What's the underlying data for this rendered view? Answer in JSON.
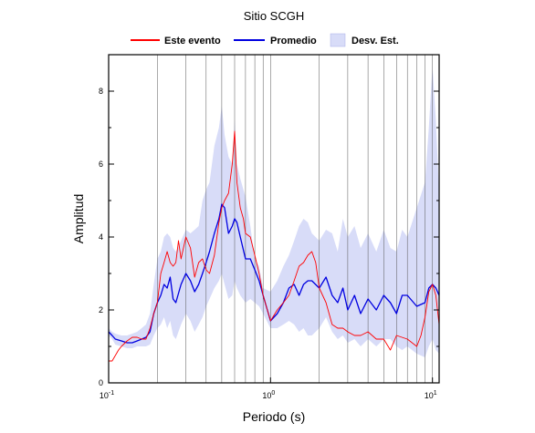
{
  "chart_data": {
    "type": "line",
    "title": "Sitio SCGH",
    "xlabel": "Periodo (s)",
    "ylabel": "Amplitud",
    "xscale": "log",
    "xlim": [
      0.1,
      11
    ],
    "ylim": [
      0,
      9
    ],
    "x_ticks": [
      {
        "base": "10",
        "exp": "-1",
        "value": 0.1
      },
      {
        "base": "10",
        "exp": "0",
        "value": 1
      },
      {
        "base": "10",
        "exp": "1",
        "value": 10
      }
    ],
    "y_ticks": [
      "0",
      "2",
      "4",
      "6",
      "8"
    ],
    "y_tick_values": [
      0,
      2,
      4,
      6,
      8
    ],
    "grid": "vertical log grid",
    "legend_placement": "top",
    "legend": [
      "Este evento",
      "Promedio",
      "Desv. Est."
    ],
    "colors": {
      "este_evento": "#ff0000",
      "promedio": "#0000e0",
      "desv_est": "#d8dcf8",
      "axis": "#000000",
      "grid": "#555555"
    },
    "series": [
      {
        "name": "Este evento",
        "x": [
          0.1,
          0.105,
          0.11,
          0.115,
          0.12,
          0.13,
          0.14,
          0.15,
          0.16,
          0.17,
          0.18,
          0.19,
          0.2,
          0.21,
          0.22,
          0.23,
          0.24,
          0.25,
          0.26,
          0.27,
          0.28,
          0.3,
          0.32,
          0.34,
          0.36,
          0.38,
          0.4,
          0.42,
          0.45,
          0.48,
          0.5,
          0.52,
          0.55,
          0.58,
          0.6,
          0.62,
          0.65,
          0.68,
          0.7,
          0.75,
          0.8,
          0.85,
          0.9,
          1.0,
          1.1,
          1.2,
          1.3,
          1.4,
          1.5,
          1.6,
          1.7,
          1.8,
          1.9,
          2.0,
          2.2,
          2.4,
          2.6,
          2.8,
          3.0,
          3.3,
          3.6,
          4.0,
          4.5,
          5.0,
          5.5,
          6.0,
          7.0,
          8.0,
          8.5,
          9.0,
          9.5,
          10.0,
          10.5,
          11.0
        ],
        "y": [
          0.6,
          0.6,
          0.75,
          0.9,
          1.0,
          1.15,
          1.25,
          1.25,
          1.2,
          1.2,
          1.5,
          1.9,
          2.2,
          3.0,
          3.3,
          3.6,
          3.3,
          3.2,
          3.3,
          3.9,
          3.4,
          4.0,
          3.7,
          2.9,
          3.3,
          3.4,
          3.1,
          3.0,
          3.5,
          4.4,
          4.8,
          5.0,
          5.2,
          6.0,
          6.9,
          5.5,
          4.8,
          4.5,
          4.1,
          4.0,
          3.5,
          3.0,
          2.4,
          1.7,
          2.0,
          2.2,
          2.4,
          2.8,
          3.2,
          3.3,
          3.5,
          3.6,
          3.3,
          2.6,
          2.2,
          1.6,
          1.5,
          1.5,
          1.4,
          1.3,
          1.3,
          1.4,
          1.2,
          1.2,
          0.9,
          1.3,
          1.2,
          1.0,
          1.3,
          1.8,
          2.5,
          2.7,
          2.4,
          1.6
        ]
      },
      {
        "name": "Promedio",
        "x": [
          0.1,
          0.105,
          0.11,
          0.12,
          0.13,
          0.14,
          0.15,
          0.16,
          0.17,
          0.18,
          0.19,
          0.2,
          0.21,
          0.22,
          0.23,
          0.24,
          0.25,
          0.26,
          0.28,
          0.3,
          0.32,
          0.34,
          0.36,
          0.38,
          0.4,
          0.42,
          0.45,
          0.48,
          0.5,
          0.52,
          0.55,
          0.58,
          0.6,
          0.62,
          0.65,
          0.7,
          0.75,
          0.8,
          0.85,
          0.9,
          1.0,
          1.1,
          1.2,
          1.3,
          1.4,
          1.5,
          1.6,
          1.7,
          1.8,
          2.0,
          2.2,
          2.4,
          2.6,
          2.8,
          3.0,
          3.3,
          3.6,
          4.0,
          4.5,
          5.0,
          5.5,
          6.0,
          6.5,
          7.0,
          8.0,
          9.0,
          9.5,
          10.0,
          10.5,
          11.0
        ],
        "y": [
          1.4,
          1.3,
          1.2,
          1.15,
          1.1,
          1.1,
          1.15,
          1.2,
          1.25,
          1.4,
          1.9,
          2.2,
          2.4,
          2.7,
          2.6,
          2.9,
          2.3,
          2.2,
          2.7,
          3.0,
          2.8,
          2.5,
          2.7,
          3.0,
          3.3,
          3.6,
          4.1,
          4.5,
          4.9,
          4.8,
          4.1,
          4.3,
          4.5,
          4.4,
          4.0,
          3.4,
          3.4,
          3.1,
          2.8,
          2.4,
          1.7,
          1.9,
          2.2,
          2.6,
          2.7,
          2.4,
          2.7,
          2.8,
          2.8,
          2.6,
          2.9,
          2.4,
          2.2,
          2.6,
          2.0,
          2.4,
          1.9,
          2.3,
          2.0,
          2.4,
          2.2,
          1.9,
          2.4,
          2.4,
          2.1,
          2.2,
          2.6,
          2.7,
          2.6,
          2.4
        ]
      },
      {
        "name": "Desv. Est.",
        "x": [
          0.1,
          0.105,
          0.11,
          0.12,
          0.13,
          0.14,
          0.15,
          0.16,
          0.17,
          0.18,
          0.19,
          0.2,
          0.21,
          0.22,
          0.23,
          0.24,
          0.25,
          0.26,
          0.28,
          0.3,
          0.32,
          0.34,
          0.36,
          0.38,
          0.4,
          0.42,
          0.45,
          0.48,
          0.5,
          0.52,
          0.55,
          0.58,
          0.6,
          0.62,
          0.65,
          0.7,
          0.75,
          0.8,
          0.85,
          0.9,
          1.0,
          1.1,
          1.2,
          1.3,
          1.4,
          1.5,
          1.6,
          1.7,
          1.8,
          2.0,
          2.2,
          2.4,
          2.6,
          2.8,
          3.0,
          3.3,
          3.6,
          4.0,
          4.5,
          5.0,
          5.5,
          6.0,
          6.5,
          7.0,
          8.0,
          9.0,
          9.5,
          10.0,
          10.5,
          11.0
        ],
        "upper": [
          1.5,
          1.4,
          1.35,
          1.3,
          1.3,
          1.35,
          1.4,
          1.5,
          1.6,
          1.9,
          2.7,
          3.4,
          3.6,
          4.0,
          4.1,
          4.0,
          3.7,
          3.6,
          3.9,
          4.2,
          4.1,
          4.2,
          4.3,
          5.0,
          5.3,
          5.5,
          6.5,
          7.0,
          7.6,
          6.8,
          6.2,
          6.0,
          7.2,
          6.0,
          5.6,
          5.1,
          4.3,
          3.4,
          3.2,
          2.6,
          2.5,
          2.8,
          3.2,
          3.5,
          3.9,
          4.3,
          4.5,
          4.4,
          4.1,
          3.9,
          4.2,
          4.1,
          3.6,
          4.5,
          4.0,
          4.3,
          3.7,
          4.1,
          3.6,
          4.2,
          3.7,
          3.6,
          4.2,
          4.0,
          4.8,
          5.5,
          7.0,
          8.7,
          7.2,
          5.2
        ],
        "lower": [
          1.3,
          1.2,
          1.05,
          1.0,
          0.95,
          0.95,
          1.0,
          1.0,
          1.0,
          1.05,
          1.3,
          1.5,
          1.6,
          1.8,
          1.5,
          1.7,
          1.3,
          1.2,
          1.6,
          1.9,
          1.7,
          1.4,
          1.6,
          1.8,
          2.1,
          2.3,
          2.6,
          2.8,
          3.0,
          2.7,
          2.3,
          2.4,
          2.8,
          2.6,
          2.4,
          2.2,
          2.3,
          2.2,
          2.1,
          1.9,
          1.5,
          1.5,
          1.6,
          1.7,
          1.6,
          1.4,
          1.5,
          1.3,
          1.3,
          1.5,
          1.8,
          1.4,
          1.2,
          1.3,
          1.1,
          1.2,
          1.0,
          1.2,
          1.0,
          1.2,
          1.2,
          1.0,
          0.9,
          1.0,
          0.8,
          0.7,
          1.0,
          1.2,
          0.9,
          0.8
        ]
      }
    ]
  }
}
